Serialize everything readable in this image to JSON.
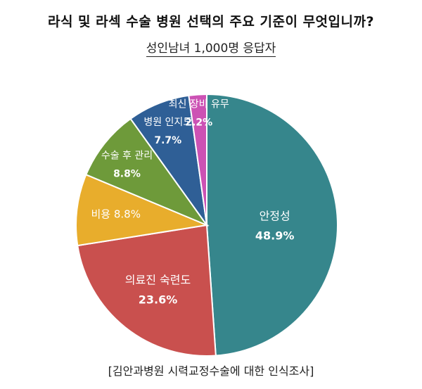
{
  "header": {
    "title": "라식 및 라섹 수술 병원 선택의 주요 기준이 무엇입니까?",
    "subtitle": "성인남녀 1,000명 응답자"
  },
  "footer": {
    "source": "[김안과병원 시력교정수술에 대한 인식조사]"
  },
  "chart_data": {
    "type": "pie",
    "title": "라식 및 라섹 수술 병원 선택의 주요 기준이 무엇입니까?",
    "subtitle": "성인남녀 1,000명 응답자",
    "slices": [
      {
        "label": "안정성",
        "value": 48.9,
        "value_label": "48.9%",
        "color": "#36868c"
      },
      {
        "label": "의료진 숙련도",
        "value": 23.6,
        "value_label": "23.6%",
        "color": "#c9504e"
      },
      {
        "label": "비용",
        "value": 8.8,
        "value_label": "8.8%",
        "color": "#e8ad2c"
      },
      {
        "label": "수술 후 관리",
        "value": 8.8,
        "value_label": "8.8%",
        "color": "#6e9a3a"
      },
      {
        "label": "병원 인지도",
        "value": 7.7,
        "value_label": "7.7%",
        "color": "#2f5f96"
      },
      {
        "label": "최신 장비 유무",
        "value": 2.2,
        "value_label": "2.2%",
        "color": "#cc52b4"
      }
    ],
    "start": "12 o'clock",
    "direction": "clockwise",
    "legend": "none"
  }
}
